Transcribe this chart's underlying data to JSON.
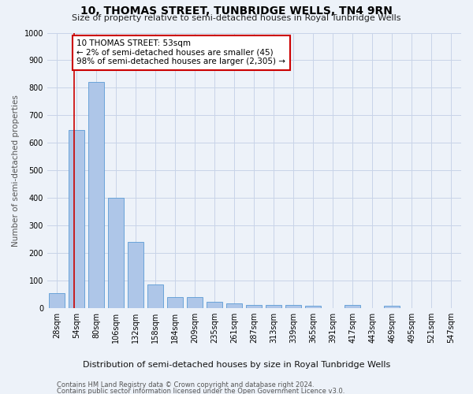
{
  "title": "10, THOMAS STREET, TUNBRIDGE WELLS, TN4 9RN",
  "subtitle": "Size of property relative to semi-detached houses in Royal Tunbridge Wells",
  "xlabel_bottom": "Distribution of semi-detached houses by size in Royal Tunbridge Wells",
  "ylabel": "Number of semi-detached properties",
  "footer1": "Contains HM Land Registry data © Crown copyright and database right 2024.",
  "footer2": "Contains public sector information licensed under the Open Government Licence v3.0.",
  "categories": [
    "28sqm",
    "54sqm",
    "80sqm",
    "106sqm",
    "132sqm",
    "158sqm",
    "184sqm",
    "209sqm",
    "235sqm",
    "261sqm",
    "287sqm",
    "313sqm",
    "339sqm",
    "365sqm",
    "391sqm",
    "417sqm",
    "443sqm",
    "469sqm",
    "495sqm",
    "521sqm",
    "547sqm"
  ],
  "values": [
    55,
    645,
    820,
    400,
    240,
    85,
    40,
    38,
    22,
    17,
    10,
    10,
    10,
    8,
    0,
    10,
    0,
    8,
    0,
    0,
    0
  ],
  "bar_color": "#aec6e8",
  "bar_edge_color": "#5b9bd5",
  "grid_color": "#c8d4e8",
  "background_color": "#edf2f9",
  "property_label": "10 THOMAS STREET: 53sqm",
  "annotation_line1": "← 2% of semi-detached houses are smaller (45)",
  "annotation_line2": "98% of semi-detached houses are larger (2,305) →",
  "vline_color": "#cc0000",
  "annotation_box_color": "#cc0000",
  "vline_x_pos": 0.88,
  "ylim": [
    0,
    1000
  ],
  "yticks": [
    0,
    100,
    200,
    300,
    400,
    500,
    600,
    700,
    800,
    900,
    1000
  ],
  "title_fontsize": 10,
  "subtitle_fontsize": 8,
  "ylabel_fontsize": 7.5,
  "tick_fontsize": 7,
  "annotation_fontsize": 7.5,
  "footer_fontsize": 6,
  "xlabel_bottom_fontsize": 8
}
